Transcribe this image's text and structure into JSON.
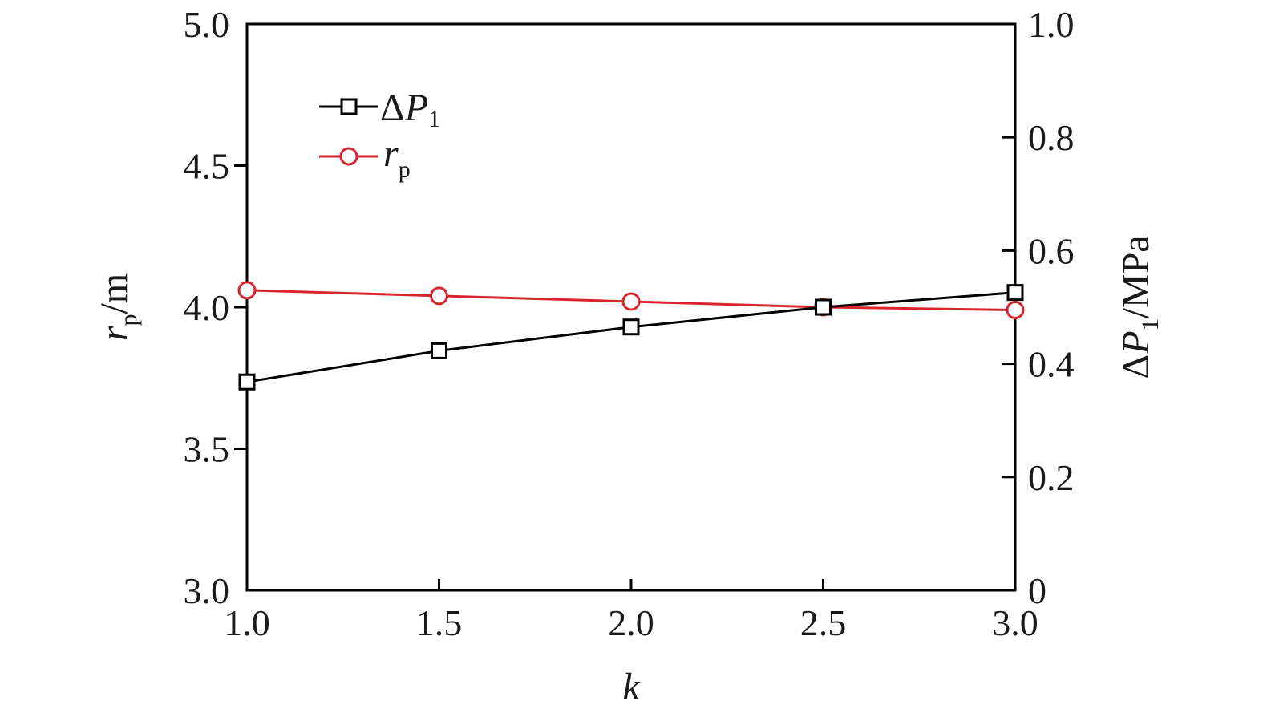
{
  "chart_data": {
    "type": "line",
    "x": [
      1.0,
      1.5,
      2.0,
      2.5,
      3.0
    ],
    "xlim": [
      1.0,
      3.0
    ],
    "xticks": [
      "1.0",
      "1.5",
      "2.0",
      "2.5",
      "3.0"
    ],
    "xlabel": "k",
    "y_left": {
      "lim": [
        3.0,
        5.0
      ],
      "ticks": [
        "3.0",
        "3.5",
        "4.0",
        "4.5",
        "5.0"
      ],
      "label_main": "r",
      "label_sub": "p",
      "label_unit": "/m"
    },
    "y_right": {
      "lim": [
        0,
        1.0
      ],
      "ticks": [
        "0",
        "0.2",
        "0.4",
        "0.6",
        "0.8",
        "1.0"
      ],
      "label_main": "ΔP",
      "label_sub": "1",
      "label_unit": "/MPa"
    },
    "series": [
      {
        "name_main": "ΔP",
        "name_sub": "1",
        "axis": "right",
        "marker": "square",
        "color": "#000000",
        "values": [
          0.368,
          0.423,
          0.465,
          0.5,
          0.526
        ]
      },
      {
        "name_main": "r",
        "name_sub": "p",
        "axis": "left",
        "marker": "circle",
        "color": "#d9262c",
        "values": [
          4.06,
          4.04,
          4.02,
          4.0,
          3.99
        ]
      }
    ],
    "legend_position": "top-left",
    "grid": false
  }
}
